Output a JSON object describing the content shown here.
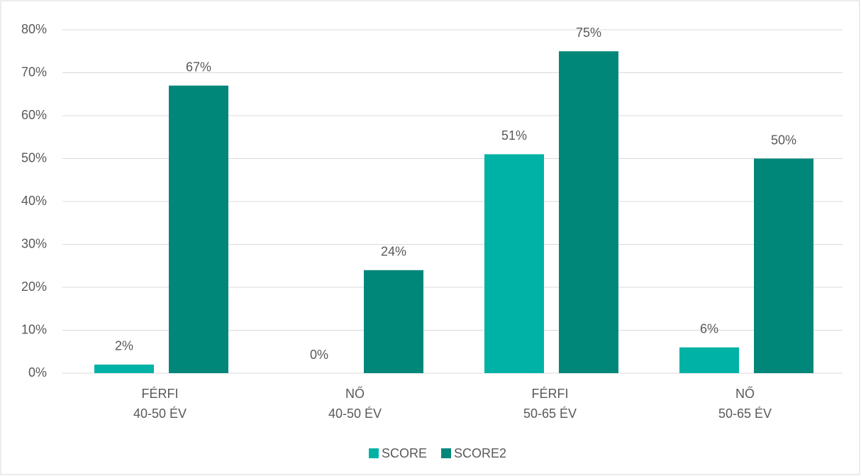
{
  "chart_data": {
    "type": "bar",
    "categories": [
      [
        "FÉRFI",
        "40-50 ÉV"
      ],
      [
        "NŐ",
        "40-50 ÉV"
      ],
      [
        "FÉRFI",
        "50-65 ÉV"
      ],
      [
        "NŐ",
        "50-65 ÉV"
      ]
    ],
    "series": [
      {
        "name": "SCORE",
        "color": "#00b2a5",
        "values": [
          2,
          0,
          51,
          6
        ],
        "value_labels": [
          "2%",
          "0%",
          "51%",
          "6%"
        ]
      },
      {
        "name": "SCORE2",
        "color": "#00877a",
        "values": [
          67,
          24,
          75,
          50
        ],
        "value_labels": [
          "67%",
          "24%",
          "75%",
          "50%"
        ]
      }
    ],
    "ylim": [
      0,
      80
    ],
    "yticks": [
      {
        "value": 0,
        "label": "0%"
      },
      {
        "value": 10,
        "label": "10%"
      },
      {
        "value": 20,
        "label": "20%"
      },
      {
        "value": 30,
        "label": "30%"
      },
      {
        "value": 40,
        "label": "40%"
      },
      {
        "value": 50,
        "label": "50%"
      },
      {
        "value": 60,
        "label": "60%"
      },
      {
        "value": 70,
        "label": "70%"
      },
      {
        "value": 80,
        "label": "80%"
      }
    ],
    "grid": true,
    "legend": "bottom"
  }
}
